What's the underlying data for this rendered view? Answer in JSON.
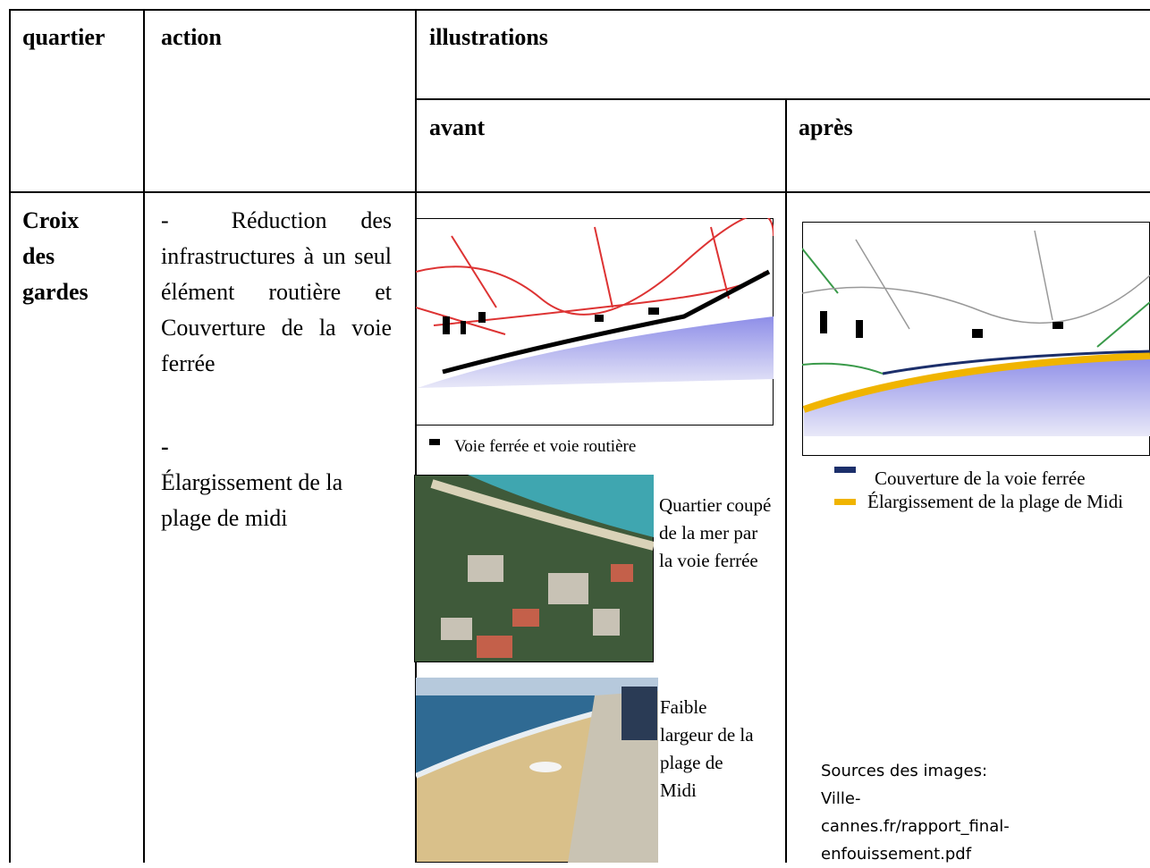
{
  "table": {
    "header": {
      "quartier": "quartier",
      "action": "action",
      "illustrations": "illustrations",
      "avant": "avant",
      "apres": "après"
    },
    "rows": [
      {
        "quartier": "Croix des gardes",
        "action": [
          {
            "bullet": "-",
            "text": "Réduction des infrastructures à un seul élément routière et Couverture de la voie ferrée"
          },
          {
            "bullet": "-",
            "text": "Élargissement de la plage de midi"
          }
        ],
        "avant": {
          "map_legend": "Voie ferrée et voie routière",
          "photo1_caption": "Quartier coupé de la mer par la voie ferrée",
          "photo2_caption": "Faible largeur de la plage de Midi"
        },
        "apres": {
          "legend": [
            "Couverture de la voie ferrée",
            "Élargissement de la plage de Midi"
          ],
          "sources": "Sources des images: Ville-cannes.fr/rapport_final-enfouissement.pdf"
        }
      }
    ]
  }
}
